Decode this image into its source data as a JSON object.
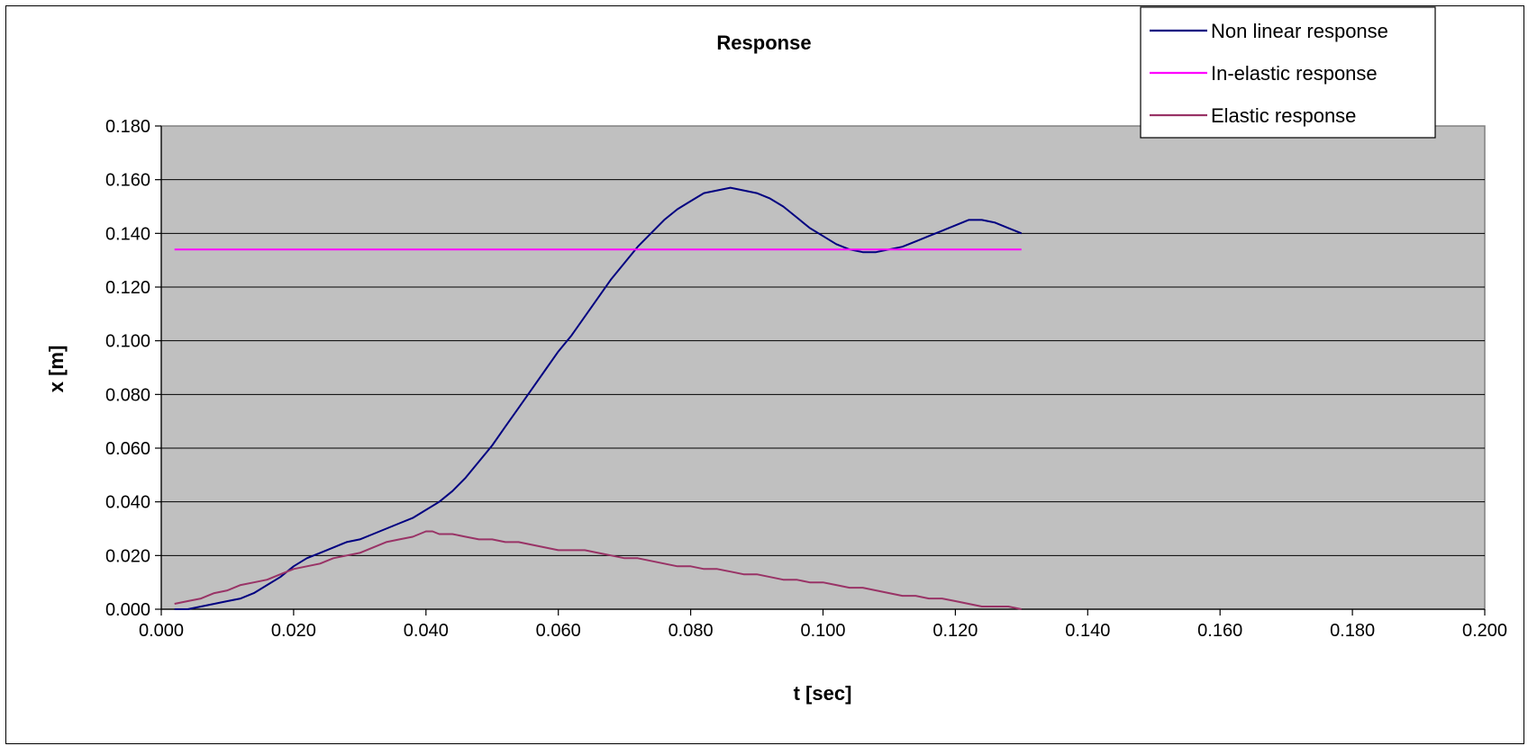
{
  "chart_data": {
    "type": "line",
    "title": "Response",
    "xlabel": "t [sec]",
    "ylabel": "x [m]",
    "xlim": [
      0,
      0.2
    ],
    "ylim": [
      0,
      0.18
    ],
    "x_ticks": [
      "0.000",
      "0.020",
      "0.040",
      "0.060",
      "0.080",
      "0.100",
      "0.120",
      "0.140",
      "0.160",
      "0.180",
      "0.200"
    ],
    "y_ticks": [
      "0.000",
      "0.020",
      "0.040",
      "0.060",
      "0.080",
      "0.100",
      "0.120",
      "0.140",
      "0.160",
      "0.180"
    ],
    "grid": true,
    "plot_background": "#c0c0c0",
    "legend_position": "top-right",
    "series": [
      {
        "name": "Non linear response",
        "color": "#000080",
        "x": [
          0.002,
          0.004,
          0.006,
          0.008,
          0.01,
          0.012,
          0.014,
          0.016,
          0.018,
          0.02,
          0.022,
          0.024,
          0.026,
          0.028,
          0.03,
          0.032,
          0.034,
          0.036,
          0.038,
          0.04,
          0.042,
          0.044,
          0.046,
          0.048,
          0.05,
          0.052,
          0.054,
          0.056,
          0.058,
          0.06,
          0.062,
          0.064,
          0.066,
          0.068,
          0.07,
          0.072,
          0.074,
          0.076,
          0.078,
          0.08,
          0.082,
          0.084,
          0.086,
          0.088,
          0.09,
          0.092,
          0.094,
          0.096,
          0.098,
          0.1,
          0.102,
          0.104,
          0.106,
          0.108,
          0.11,
          0.112,
          0.114,
          0.116,
          0.118,
          0.12,
          0.122,
          0.124,
          0.126,
          0.128,
          0.13
        ],
        "y": [
          0.0,
          0.0,
          0.001,
          0.002,
          0.003,
          0.004,
          0.006,
          0.009,
          0.012,
          0.016,
          0.019,
          0.021,
          0.023,
          0.025,
          0.026,
          0.028,
          0.03,
          0.032,
          0.034,
          0.037,
          0.04,
          0.044,
          0.049,
          0.055,
          0.061,
          0.068,
          0.075,
          0.082,
          0.089,
          0.096,
          0.102,
          0.109,
          0.116,
          0.123,
          0.129,
          0.135,
          0.14,
          0.145,
          0.149,
          0.152,
          0.155,
          0.156,
          0.157,
          0.156,
          0.155,
          0.153,
          0.15,
          0.146,
          0.142,
          0.139,
          0.136,
          0.134,
          0.133,
          0.133,
          0.134,
          0.135,
          0.137,
          0.139,
          0.141,
          0.143,
          0.145,
          0.145,
          0.144,
          0.142,
          0.14
        ]
      },
      {
        "name": "In-elastic response",
        "color": "#ff00ff",
        "x": [
          0.002,
          0.13
        ],
        "y": [
          0.134,
          0.134
        ]
      },
      {
        "name": "Elastic response",
        "color": "#993366",
        "x": [
          0.002,
          0.004,
          0.006,
          0.008,
          0.01,
          0.012,
          0.014,
          0.016,
          0.018,
          0.02,
          0.022,
          0.024,
          0.026,
          0.028,
          0.03,
          0.032,
          0.034,
          0.036,
          0.038,
          0.04,
          0.041,
          0.042,
          0.044,
          0.046,
          0.048,
          0.05,
          0.052,
          0.054,
          0.056,
          0.058,
          0.06,
          0.062,
          0.064,
          0.066,
          0.068,
          0.07,
          0.072,
          0.074,
          0.076,
          0.078,
          0.08,
          0.082,
          0.084,
          0.086,
          0.088,
          0.09,
          0.092,
          0.094,
          0.096,
          0.098,
          0.1,
          0.102,
          0.104,
          0.106,
          0.108,
          0.11,
          0.112,
          0.114,
          0.116,
          0.118,
          0.12,
          0.122,
          0.124,
          0.126,
          0.128,
          0.13
        ],
        "y": [
          0.002,
          0.003,
          0.004,
          0.006,
          0.007,
          0.009,
          0.01,
          0.011,
          0.013,
          0.015,
          0.016,
          0.017,
          0.019,
          0.02,
          0.021,
          0.023,
          0.025,
          0.026,
          0.027,
          0.029,
          0.029,
          0.028,
          0.028,
          0.027,
          0.026,
          0.026,
          0.025,
          0.025,
          0.024,
          0.023,
          0.022,
          0.022,
          0.022,
          0.021,
          0.02,
          0.019,
          0.019,
          0.018,
          0.017,
          0.016,
          0.016,
          0.015,
          0.015,
          0.014,
          0.013,
          0.013,
          0.012,
          0.011,
          0.011,
          0.01,
          0.01,
          0.009,
          0.008,
          0.008,
          0.007,
          0.006,
          0.005,
          0.005,
          0.004,
          0.004,
          0.003,
          0.002,
          0.001,
          0.001,
          0.001,
          0.0
        ]
      }
    ]
  }
}
